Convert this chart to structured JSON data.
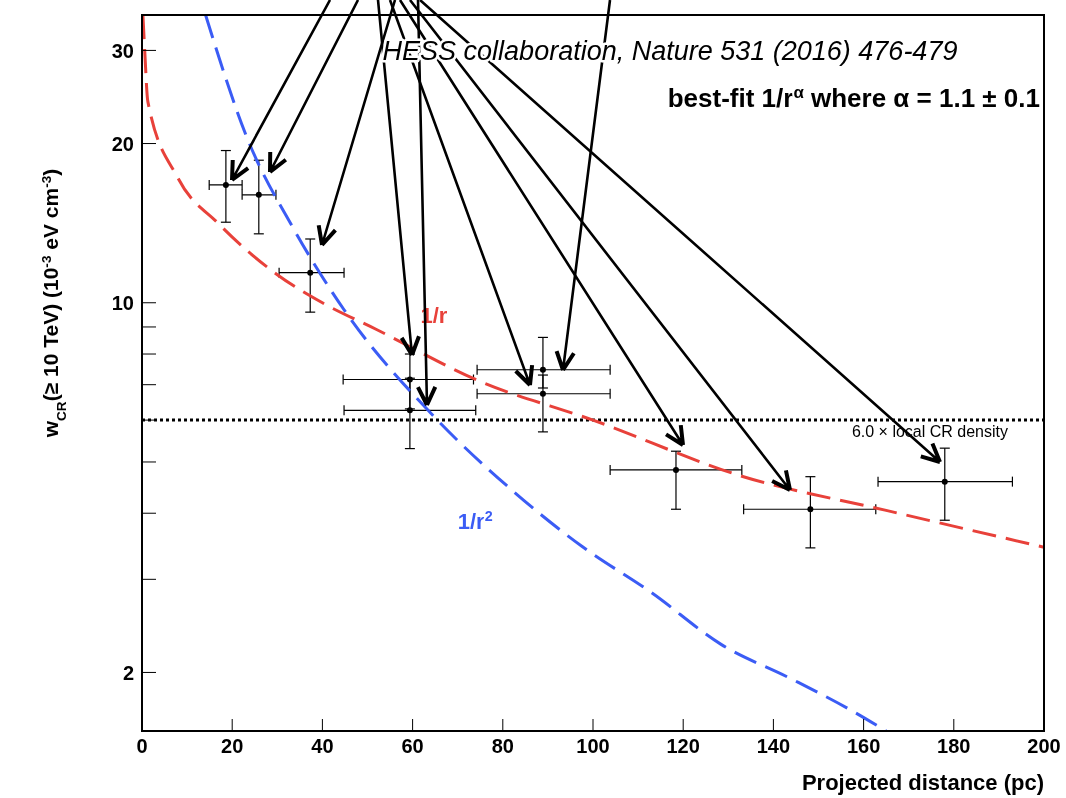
{
  "chart_data": {
    "type": "scatter",
    "xlabel": "Projected distance (pc)",
    "ylabel": "w$_{CR}$(≥ 10 TeV) (10$^{-3}$ eV cm$^{-3}$)",
    "xlim": [
      0,
      200
    ],
    "xticks": [
      0,
      20,
      40,
      60,
      80,
      100,
      120,
      140,
      160,
      180,
      200
    ],
    "ylim": [
      1.55,
      35
    ],
    "yticks": [
      2,
      {
        "value": 3,
        "label": null
      },
      {
        "value": 4,
        "label": null
      },
      {
        "value": 5,
        "label": null
      },
      {
        "value": 6,
        "label": null
      },
      {
        "value": 7,
        "label": null
      },
      {
        "value": 8,
        "label": null
      },
      {
        "value": 9,
        "label": null
      },
      10,
      20,
      30
    ],
    "log": "y",
    "marker": "circle",
    "series": [
      {
        "color": "#000000",
        "x": [
          18.6,
          25.9,
          37.3,
          59.4,
          59.4,
          88.9,
          88.9,
          118.4,
          148.2,
          178
        ],
        "values": [
          16.7,
          16.0,
          11.4,
          7.16,
          6.26,
          7.47,
          6.73,
          4.83,
          4.07,
          4.59
        ],
        "errors": [
          [
            14.2,
            19.4
          ],
          [
            13.5,
            18.6
          ],
          [
            9.6,
            13.2
          ],
          [
            6.3,
            8.0
          ],
          [
            5.3,
            7.2
          ],
          [
            6.9,
            8.6
          ],
          [
            5.7,
            7.3
          ],
          [
            4.07,
            5.24
          ],
          [
            3.44,
            4.69
          ],
          [
            3.88,
            5.31
          ]
        ],
        "xerrors": [
          [
            14.9,
            22.2
          ],
          [
            22.2,
            29.7
          ],
          [
            30.4,
            44.8
          ],
          [
            44.6,
            73.5
          ],
          [
            44.8,
            74
          ],
          [
            74.3,
            103.8
          ],
          [
            74.3,
            103.8
          ],
          [
            103.8,
            133
          ],
          [
            133.4,
            162.7
          ],
          [
            163.2,
            193
          ]
        ]
      },
      {
        "type": "line",
        "name": "1/r",
        "color": "#e8413a",
        "line_style": "dashed",
        "marker": "none",
        "x": [
          0.2,
          0.6,
          1.3,
          8,
          17,
          30,
          40,
          52,
          75,
          100,
          133,
          165,
          200
        ],
        "values": [
          35,
          30,
          24,
          17.2,
          14.1,
          11.3,
          10,
          8.9,
          7.1,
          6.0,
          4.7,
          4.05,
          3.45
        ]
      },
      {
        "type": "line",
        "name": "1/r$^{2}$",
        "color": "#3b5cf5",
        "line_style": "dashed",
        "marker": "none",
        "x": [
          14.1,
          23.5,
          33.4,
          44.8,
          63.9,
          82.2,
          97.6,
          113,
          128.4,
          143.7,
          158.1,
          165
        ],
        "values": [
          35,
          20.3,
          13.9,
          9.7,
          6.2,
          4.41,
          3.46,
          2.83,
          2.26,
          1.95,
          1.68,
          1.55
        ]
      }
    ],
    "ref_lines": [
      {
        "axis": "y",
        "value": 6.0,
        "label": "6.0 × local CR density",
        "color": "#000000",
        "line_style": "dotted"
      }
    ],
    "annotations": [
      "HESS collaboration, Nature 531 (2016) 476-479",
      "best-fit 1/r$^{α}$ where α = 1.1 ± 0.1"
    ]
  }
}
